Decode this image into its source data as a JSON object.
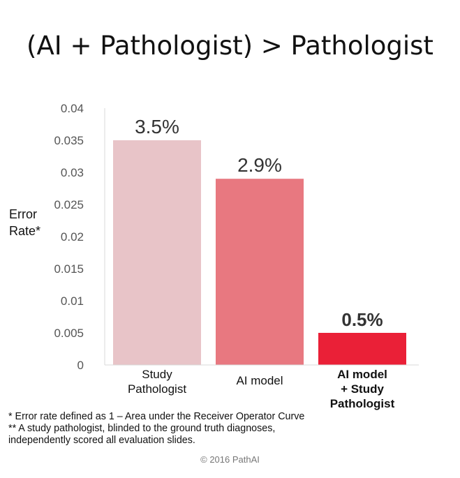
{
  "title": "(AI + Pathologist) > Pathologist",
  "chart_data": {
    "type": "bar",
    "title": "",
    "xlabel": "",
    "ylabel": "Error Rate*",
    "ylim": [
      0,
      0.04
    ],
    "yticks": [
      "0",
      "0.005",
      "0.01",
      "0.015",
      "0.02",
      "0.025",
      "0.03",
      "0.035",
      "0.04"
    ],
    "categories": [
      [
        "Study",
        "Pathologist"
      ],
      [
        "AI model"
      ],
      [
        "AI model",
        "+ Study",
        "Pathologist"
      ]
    ],
    "values": [
      0.035,
      0.029,
      0.005
    ],
    "data_labels": [
      "3.5%",
      "2.9%",
      "0.5%"
    ],
    "colors": [
      "#e8c4c8",
      "#e87880",
      "#ea2037"
    ],
    "emphasized_index": 2,
    "grid": false,
    "legend": "none"
  },
  "footnotes": [
    "* Error rate defined as 1 – Area under the Receiver Operator Curve",
    "** A study pathologist, blinded to the ground truth diagnoses,",
    "independently scored all evaluation slides."
  ],
  "copyright": "© 2016 PathAI"
}
